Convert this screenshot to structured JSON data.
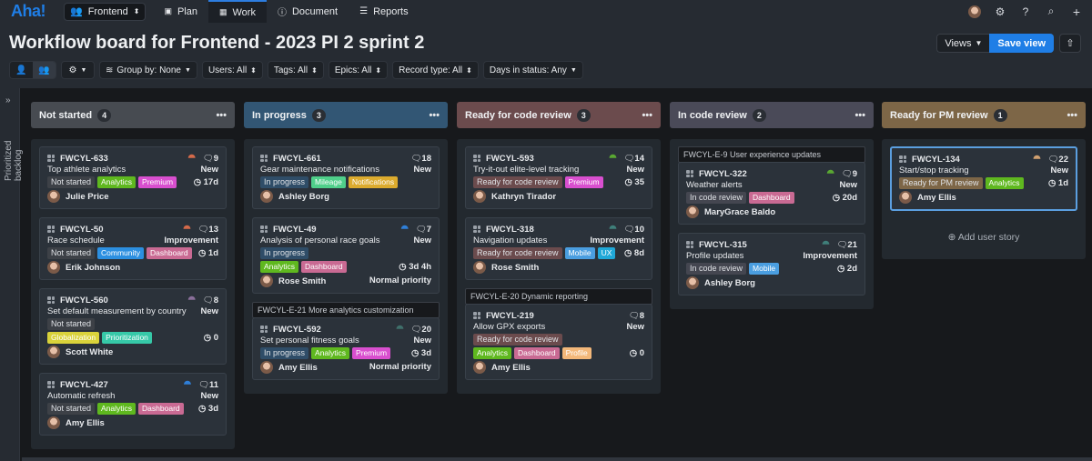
{
  "topnav": {
    "logo": "Aha!",
    "workspace": "Frontend",
    "tabs": [
      {
        "label": "Plan",
        "icon": "calendar-icon"
      },
      {
        "label": "Work",
        "icon": "grid-icon",
        "active": true
      },
      {
        "label": "Document",
        "icon": "info-icon"
      },
      {
        "label": "Reports",
        "icon": "bars-icon"
      }
    ],
    "right_icons": [
      "avatar",
      "gear-icon",
      "help-icon",
      "search-icon",
      "plus-icon"
    ]
  },
  "header": {
    "title": "Workflow board for Frontend - 2023 PI 2 sprint 2",
    "views_label": "Views",
    "save_view_label": "Save view"
  },
  "filters": {
    "group_by": "Group by: None",
    "users": "Users: All",
    "tags": "Tags: All",
    "epics": "Epics: All",
    "record_type": "Record type: All",
    "days_in_status": "Days in status: Any"
  },
  "sidebar": {
    "label": "Prioritized backlog"
  },
  "colors": {
    "accent": "#1f7ee6",
    "not_started": "#474b51",
    "in_progress": "#325674",
    "ready_for_code_review": "#6b4b4d",
    "in_code_review": "#4a4a58",
    "ready_for_pm_review": "#7d6647"
  },
  "columns": [
    {
      "name": "Not started",
      "count": "4",
      "color": "#474b51",
      "cards": [
        {
          "id": "FWCYL-633",
          "title": "Top athlete analytics",
          "score": "9",
          "type": "New",
          "status": "Not started",
          "tags": [
            "Analytics",
            "Premium"
          ],
          "time": "17d",
          "assignee": "Julie Price",
          "hier_color": "#d46a4a"
        },
        {
          "id": "FWCYL-50",
          "title": "Race schedule",
          "score": "13",
          "type": "Improvement",
          "status": "Not started",
          "tags": [
            "Community",
            "Dashboard"
          ],
          "time": "1d",
          "assignee": "Erik Johnson",
          "hier_color": "#d46a4a"
        },
        {
          "id": "FWCYL-560",
          "title": "Set default measurement by country",
          "score": "8",
          "type": "New",
          "status": "Not started",
          "tags": [
            "Globalization",
            "Prioritization"
          ],
          "time": "0",
          "assignee": "Scott White",
          "hier_color": "#8a6f9a"
        },
        {
          "id": "FWCYL-427",
          "title": "Automatic refresh",
          "score": "11",
          "type": "New",
          "status": "Not started",
          "tags": [
            "Analytics",
            "Dashboard"
          ],
          "time": "3d",
          "assignee": "Amy Ellis",
          "hier_color": "#2f7fd8"
        }
      ]
    },
    {
      "name": "In progress",
      "count": "3",
      "color": "#325674",
      "cards": [
        {
          "id": "FWCYL-661",
          "title": "Gear maintenance notifications",
          "score": "18",
          "type": "New",
          "status": "In progress",
          "tags": [
            "Mileage",
            "Notifications"
          ],
          "assignee": "Ashley Borg"
        },
        {
          "id": "FWCYL-49",
          "title": "Analysis of personal race goals",
          "score": "7",
          "type": "New",
          "status": "In progress",
          "tags": [
            "Analytics",
            "Dashboard"
          ],
          "time": "3d 4h",
          "assignee": "Rose Smith",
          "priority": "Normal priority",
          "hier_color": "#2f7fd8"
        },
        {
          "epic": "FWCYL-E-21 More analytics customization",
          "id": "FWCYL-592",
          "title": "Set personal fitness goals",
          "score": "20",
          "type": "New",
          "status": "In progress",
          "tags": [
            "Analytics",
            "Premium"
          ],
          "time": "3d",
          "assignee": "Amy Ellis",
          "priority": "Normal priority",
          "hier_color": "#3f6f6a"
        }
      ]
    },
    {
      "name": "Ready for code review",
      "count": "3",
      "color": "#6b4b4d",
      "cards": [
        {
          "id": "FWCYL-593",
          "title": "Try-it-out elite-level tracking",
          "score": "14",
          "type": "New",
          "status": "Ready for code review",
          "tags": [
            "Premium"
          ],
          "time": "35",
          "assignee": "Kathryn Tirador",
          "hier_color": "#5aa832"
        },
        {
          "id": "FWCYL-318",
          "title": "Navigation updates",
          "score": "10",
          "type": "Improvement",
          "status": "Ready for code review",
          "tags": [
            "Mobile",
            "UX"
          ],
          "time": "8d",
          "assignee": "Rose Smith",
          "hier_color": "#3f7f7a"
        },
        {
          "epic": "FWCYL-E-20 Dynamic reporting",
          "id": "FWCYL-219",
          "title": "Allow GPX exports",
          "score": "8",
          "type": "New",
          "status": "Ready for code review",
          "tags": [
            "Analytics",
            "Dashboard",
            "Profile"
          ],
          "time": "0",
          "assignee": "Amy Ellis"
        }
      ]
    },
    {
      "name": "In code review",
      "count": "2",
      "color": "#4a4a58",
      "cards": [
        {
          "epic": "FWCYL-E-9 User experience updates",
          "id": "FWCYL-322",
          "title": "Weather alerts",
          "score": "9",
          "type": "New",
          "status": "In code review",
          "tags": [
            "Dashboard"
          ],
          "time": "20d",
          "assignee": "MaryGrace Baldo",
          "hier_color": "#5aa832"
        },
        {
          "id": "FWCYL-315",
          "title": "Profile updates",
          "score": "21",
          "type": "Improvement",
          "status": "In code review",
          "tags": [
            "Mobile"
          ],
          "time": "2d",
          "assignee": "Ashley Borg",
          "hier_color": "#3f7f7a"
        }
      ]
    },
    {
      "name": "Ready for PM review",
      "count": "1",
      "color": "#7d6647",
      "cards": [
        {
          "id": "FWCYL-134",
          "title": "Start/stop tracking",
          "score": "22",
          "type": "New",
          "status": "Ready for PM review",
          "tags": [
            "Analytics"
          ],
          "time": "1d",
          "assignee": "Amy Ellis",
          "hier_color": "#d0a070",
          "selected": true
        }
      ],
      "add_label": "Add user story"
    }
  ],
  "tag_colors": {
    "Analytics": "#5fb81f",
    "Premium": "#d94fcf",
    "Community": "#2c8fe0",
    "Dashboard": "#c96a93",
    "Globalization": "#d9d23a",
    "Prioritization": "#36c9a8",
    "Mileage": "#4fcf8a",
    "Notifications": "#dcab2e",
    "Mobile": "#4a9ee0",
    "UX": "#20a8d8",
    "Profile": "#f3b87a"
  },
  "status_colors": {
    "Not started": "#3d4147",
    "In progress": "#2f4d68",
    "Ready for code review": "#6b4b4d",
    "In code review": "#444650",
    "Ready for PM review": "#7d6647"
  }
}
